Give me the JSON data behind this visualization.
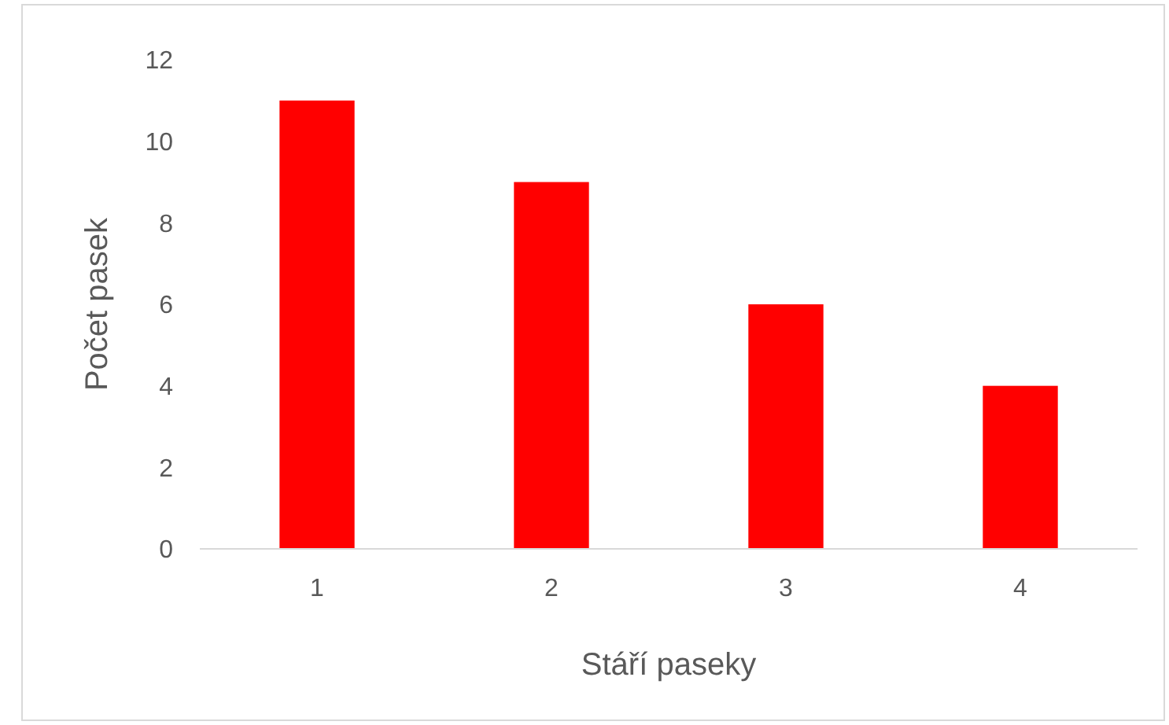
{
  "chart_data": {
    "type": "bar",
    "xlabel": "Stáří paseky",
    "ylabel": "Počet pasek",
    "categories": [
      "1",
      "2",
      "3",
      "4"
    ],
    "values": [
      11,
      9,
      6,
      4
    ],
    "color": "#ff0000",
    "ylim": [
      0,
      12
    ],
    "yticks": [
      0,
      2,
      4,
      6,
      8,
      10,
      12
    ],
    "grid": false
  }
}
